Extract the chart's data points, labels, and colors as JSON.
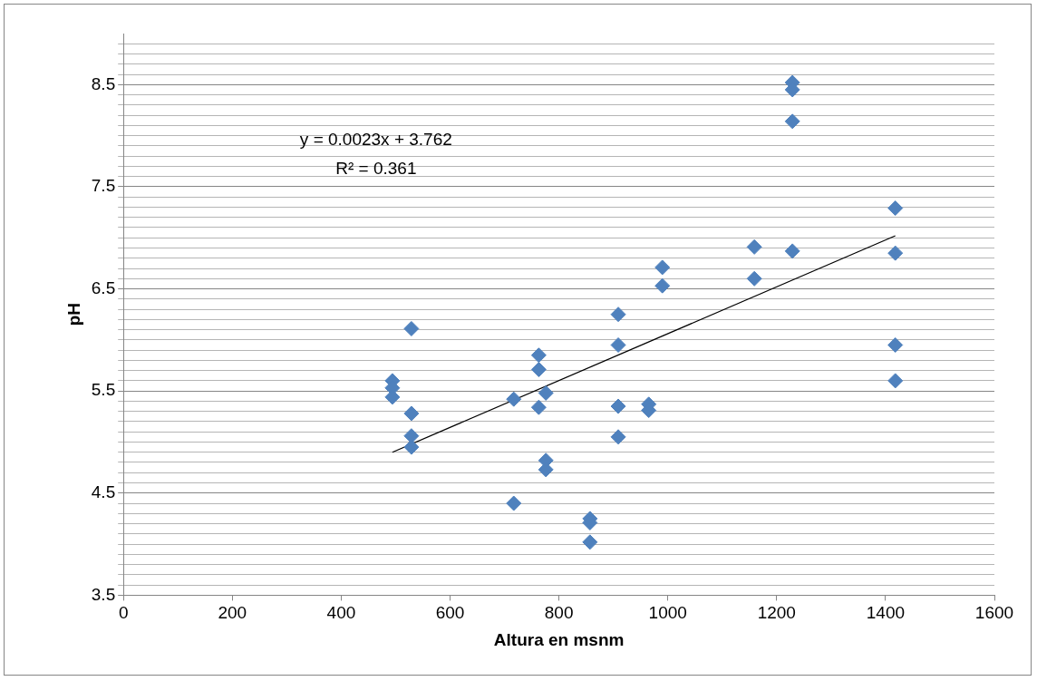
{
  "chart_data": {
    "type": "scatter",
    "xlabel": "Altura en msnm",
    "ylabel": "pH",
    "series": [
      {
        "color": "#4f81bd",
        "marker": "diamond",
        "x": [
          494,
          494,
          494,
          529,
          529,
          529,
          529,
          717,
          717,
          763,
          763,
          763,
          776,
          776,
          776,
          857,
          857,
          857,
          909,
          909,
          909,
          909,
          965,
          965,
          990,
          990,
          1159,
          1159,
          1229,
          1229,
          1229,
          1229,
          1418,
          1418,
          1418,
          1418
        ],
        "values": [
          5.6,
          5.53,
          5.44,
          6.11,
          5.28,
          5.06,
          4.95,
          5.42,
          4.4,
          5.85,
          5.71,
          5.34,
          5.48,
          4.82,
          4.73,
          4.25,
          4.21,
          4.02,
          6.25,
          5.95,
          5.35,
          5.05,
          5.37,
          5.31,
          6.71,
          6.53,
          6.91,
          6.6,
          8.52,
          8.45,
          8.14,
          6.87,
          7.29,
          6.85,
          5.95,
          5.6
        ]
      },
      {
        "type": "line",
        "marker": "none",
        "color": "#000000",
        "x": [
          494,
          1418
        ],
        "values": [
          4.9,
          7.02
        ]
      }
    ],
    "xlim": [
      0,
      1600
    ],
    "xticks": [
      0,
      200,
      400,
      600,
      800,
      1000,
      1200,
      1400,
      1600
    ],
    "ylim": [
      3.5,
      9
    ],
    "yticks": [
      3.5,
      {
        "value": 3.6,
        "label": null
      },
      {
        "value": 3.7,
        "label": null
      },
      {
        "value": 3.8,
        "label": null
      },
      {
        "value": 3.9,
        "label": null
      },
      {
        "value": 4.0,
        "label": null
      },
      {
        "value": 4.1,
        "label": null
      },
      {
        "value": 4.2,
        "label": null
      },
      {
        "value": 4.3,
        "label": null
      },
      {
        "value": 4.4,
        "label": null
      },
      4.5,
      {
        "value": 4.6,
        "label": null
      },
      {
        "value": 4.7,
        "label": null
      },
      {
        "value": 4.8,
        "label": null
      },
      {
        "value": 4.9,
        "label": null
      },
      {
        "value": 5.0,
        "label": null
      },
      {
        "value": 5.1,
        "label": null
      },
      {
        "value": 5.2,
        "label": null
      },
      {
        "value": 5.3,
        "label": null
      },
      {
        "value": 5.4,
        "label": null
      },
      5.5,
      {
        "value": 5.6,
        "label": null
      },
      {
        "value": 5.7,
        "label": null
      },
      {
        "value": 5.8,
        "label": null
      },
      {
        "value": 5.9,
        "label": null
      },
      {
        "value": 6.0,
        "label": null
      },
      {
        "value": 6.1,
        "label": null
      },
      {
        "value": 6.2,
        "label": null
      },
      {
        "value": 6.3,
        "label": null
      },
      {
        "value": 6.4,
        "label": null
      },
      6.5,
      {
        "value": 6.6,
        "label": null
      },
      {
        "value": 6.7,
        "label": null
      },
      {
        "value": 6.8,
        "label": null
      },
      {
        "value": 6.9,
        "label": null
      },
      {
        "value": 7.0,
        "label": null
      },
      {
        "value": 7.1,
        "label": null
      },
      {
        "value": 7.2,
        "label": null
      },
      {
        "value": 7.3,
        "label": null
      },
      {
        "value": 7.4,
        "label": null
      },
      7.5,
      {
        "value": 7.6,
        "label": null
      },
      {
        "value": 7.7,
        "label": null
      },
      {
        "value": 7.8,
        "label": null
      },
      {
        "value": 7.9,
        "label": null
      },
      {
        "value": 8.0,
        "label": null
      },
      {
        "value": 8.1,
        "label": null
      },
      {
        "value": 8.2,
        "label": null
      },
      {
        "value": 8.3,
        "label": null
      },
      {
        "value": 8.4,
        "label": null
      },
      8.5,
      {
        "value": 8.6,
        "label": null
      },
      {
        "value": 8.7,
        "label": null
      },
      {
        "value": 8.8,
        "label": null
      },
      {
        "value": 8.9,
        "label": null
      }
    ],
    "grid": "y",
    "legend": false,
    "line_style": "solid",
    "annotations": [
      "y = 0.0023x + 3.762",
      "R² = 0.361"
    ]
  }
}
